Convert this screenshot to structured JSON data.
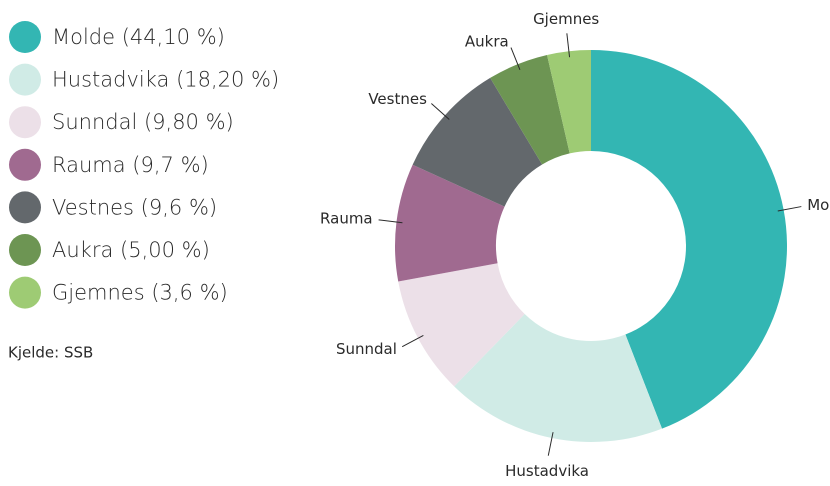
{
  "chart_data": {
    "type": "donut",
    "categories": [
      "Molde",
      "Hustadvika",
      "Sunndal",
      "Rauma",
      "Vestnes",
      "Aukra",
      "Gjemnes"
    ],
    "values": [
      44.1,
      18.2,
      9.8,
      9.7,
      9.6,
      5.0,
      3.6
    ],
    "legend": [
      "Molde (44,10 %)",
      "Hustadvika (18,20 %)",
      "Sunndal (9,80 %)",
      "Rauma (9,7 %)",
      "Vestnes (9,6 %)",
      "Aukra (5,00 %)",
      "Gjemnes (3,6 %)"
    ],
    "colors": [
      "#33b6b3",
      "#d0ebe6",
      "#ece0e8",
      "#a06a90",
      "#63686c",
      "#6d9553",
      "#9ecb74"
    ],
    "source": "Kjelde: SSB"
  }
}
